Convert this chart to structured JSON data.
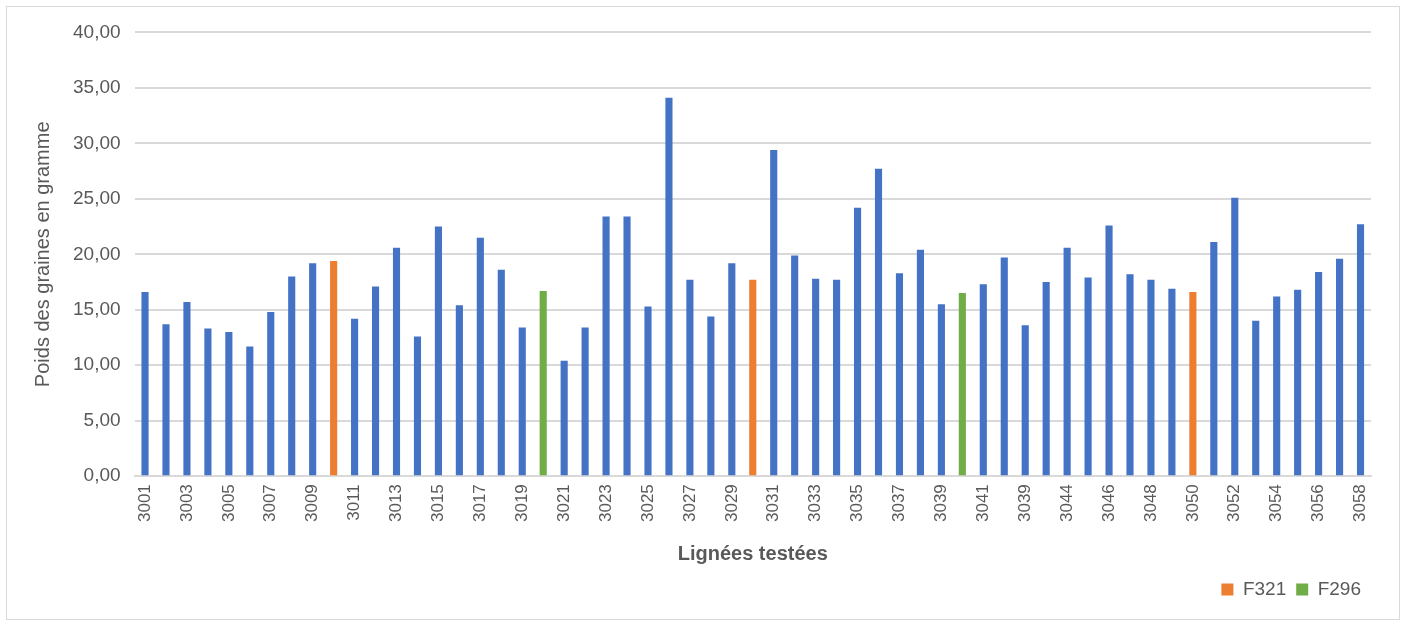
{
  "chart_data": {
    "type": "bar",
    "xlabel": "Lignées testées",
    "ylabel": "Poids des graines en gramme",
    "categories": [
      "3001",
      null,
      "3003",
      null,
      "3005",
      null,
      "3007",
      null,
      "3009",
      null,
      "3011",
      null,
      "3013",
      null,
      "3015",
      null,
      "3017",
      null,
      "3019",
      null,
      "3021",
      null,
      "3023",
      null,
      "3025",
      null,
      "3027",
      null,
      "3029",
      null,
      "3031",
      null,
      "3033",
      null,
      "3035",
      null,
      "3037",
      null,
      "3039",
      null,
      "3041",
      null,
      "3039",
      null,
      "3044",
      null,
      "3046",
      null,
      "3048",
      null,
      "3050",
      null,
      "3052",
      null,
      "3054",
      null,
      "3056",
      null,
      "3058"
    ],
    "series": [
      {
        "color": "#4472c4",
        "values": [
          16.6,
          13.7,
          15.7,
          13.3,
          13.0,
          11.7,
          14.8,
          18.0,
          19.2,
          null,
          14.2,
          17.1,
          20.6,
          12.6,
          22.5,
          15.4,
          21.5,
          18.6,
          13.4,
          null,
          10.4,
          13.4,
          23.4,
          23.4,
          15.3,
          34.1,
          17.7,
          14.4,
          19.2,
          null,
          29.4,
          19.9,
          17.8,
          17.7,
          24.2,
          27.7,
          18.3,
          20.4,
          15.5,
          null,
          17.3,
          19.7,
          13.6,
          17.5,
          20.6,
          17.9,
          22.6,
          18.2,
          17.7,
          16.9,
          null,
          21.1,
          25.1,
          14.0,
          16.2,
          16.8,
          18.4,
          19.6,
          22.7
        ]
      },
      {
        "name": "F321",
        "color": "#ed7d31",
        "values": [
          null,
          null,
          null,
          null,
          null,
          null,
          null,
          null,
          null,
          19.4,
          null,
          null,
          null,
          null,
          null,
          null,
          null,
          null,
          null,
          null,
          null,
          null,
          null,
          null,
          null,
          null,
          null,
          null,
          null,
          17.7,
          null,
          null,
          null,
          null,
          null,
          null,
          null,
          null,
          null,
          null,
          null,
          null,
          null,
          null,
          null,
          null,
          null,
          null,
          null,
          null,
          16.6,
          null,
          null,
          null,
          null,
          null,
          null,
          null,
          null
        ]
      },
      {
        "name": "F296",
        "color": "#70ad47",
        "values": [
          null,
          null,
          null,
          null,
          null,
          null,
          null,
          null,
          null,
          null,
          null,
          null,
          null,
          null,
          null,
          null,
          null,
          null,
          null,
          16.7,
          null,
          null,
          null,
          null,
          null,
          null,
          null,
          null,
          null,
          null,
          null,
          null,
          null,
          null,
          null,
          null,
          null,
          null,
          null,
          16.5,
          null,
          null,
          null,
          null,
          null,
          null,
          null,
          null,
          null,
          null,
          null,
          null,
          null,
          null,
          null,
          null,
          null,
          null,
          null
        ]
      }
    ],
    "ylim": [
      0,
      40
    ],
    "yticks": [
      {
        "value": 0,
        "label": "0,00"
      },
      {
        "value": 5,
        "label": "5,00"
      },
      {
        "value": 10,
        "label": "10,00"
      },
      {
        "value": 15,
        "label": "15,00"
      },
      {
        "value": 20,
        "label": "20,00"
      },
      {
        "value": 25,
        "label": "25,00"
      },
      {
        "value": 30,
        "label": "30,00"
      },
      {
        "value": 35,
        "label": "35,00"
      },
      {
        "value": 40,
        "label": "40,00"
      }
    ],
    "grid": "y",
    "legend": "bottom right"
  }
}
